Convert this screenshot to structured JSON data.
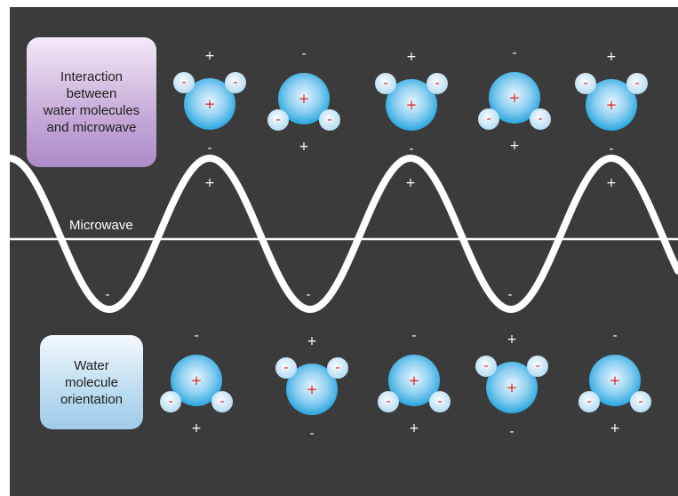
{
  "labels": {
    "top_box": "Interaction\nbetween\nwater molecules\nand microwave",
    "bottom_box": "Water\nmolecule\norientation",
    "wave": "Microwave"
  },
  "symbols": {
    "plus": "+",
    "minus": "-"
  },
  "colors": {
    "background": "#3b3b3b",
    "wave": "#ffffff",
    "oxygen_center": "#e8f5fd",
    "oxygen_edge": "#2aa7e0",
    "hydrogen": "#cfe8f7",
    "charge_red": "#e0211d",
    "top_box": "#c6aad8",
    "bottom_box": "#bcdcf0"
  },
  "top_row": [
    {
      "orientation": "hydrogens-up"
    },
    {
      "orientation": "hydrogens-down"
    },
    {
      "orientation": "hydrogens-up"
    },
    {
      "orientation": "hydrogens-down"
    },
    {
      "orientation": "hydrogens-up"
    }
  ],
  "bottom_row": [
    {
      "orientation": "hydrogens-down"
    },
    {
      "orientation": "hydrogens-up"
    },
    {
      "orientation": "hydrogens-down"
    },
    {
      "orientation": "hydrogens-up"
    },
    {
      "orientation": "hydrogens-down"
    }
  ],
  "wave_crest_signs": [
    "+",
    "+",
    "+"
  ],
  "wave_trough_signs": [
    "-",
    "-",
    "-"
  ]
}
